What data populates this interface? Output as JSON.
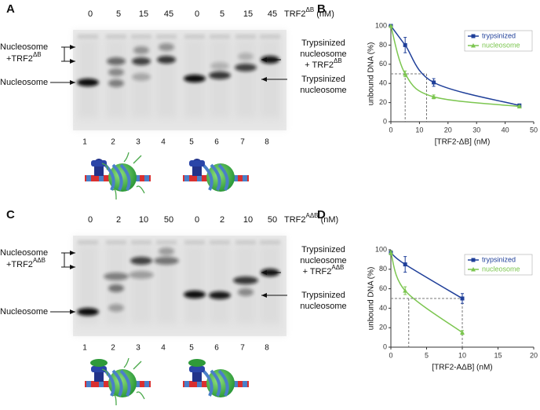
{
  "gels": [
    {
      "panel": "A",
      "concentrations": [
        0,
        5,
        15,
        45,
        0,
        5,
        15,
        45
      ],
      "conc_label": {
        "main": "TRF2",
        "sup": "ΔB",
        "unit": "(nM)"
      },
      "left_labels": {
        "complex": [
          "Nucleosome",
          "+TRF2"
        ],
        "complex_sup": "ΔB",
        "free": "Nucleosome"
      },
      "right_labels": {
        "complex": [
          "Trypsinized",
          "nucleosome",
          "+ TRF2"
        ],
        "complex_sup": "ΔB",
        "free": [
          "Trypsinized",
          "nucleosome"
        ]
      },
      "lanes": [
        1,
        2,
        3,
        4,
        5,
        6,
        7,
        8
      ]
    },
    {
      "panel": "C",
      "concentrations": [
        0,
        2,
        10,
        50,
        0,
        2,
        10,
        50
      ],
      "conc_label": {
        "main": "TRF2",
        "sup": "AΔB",
        "unit": "(nM)"
      },
      "left_labels": {
        "complex": [
          "Nucleosome",
          "+TRF2"
        ],
        "complex_sup": "AΔB",
        "free": "Nucleosome"
      },
      "right_labels": {
        "complex": [
          "Trypsinized",
          "nucleosome",
          "+ TRF2"
        ],
        "complex_sup": "AΔB",
        "free": [
          "Trypsinized",
          "nucleosome"
        ]
      },
      "lanes": [
        1,
        2,
        3,
        4,
        5,
        6,
        7,
        8
      ]
    }
  ],
  "chart_data": [
    {
      "type": "line",
      "panel": "B",
      "x_label": "[TRF2-ΔB] (nM)",
      "y_label": "unbound DNA (%)",
      "x": [
        0,
        5,
        15,
        45
      ],
      "series": [
        {
          "name": "trypsinized",
          "color": "#1f3f99",
          "marker": "square",
          "values": [
            100,
            80,
            41,
            17
          ],
          "errors": [
            0,
            8,
            4,
            1
          ]
        },
        {
          "name": "nucleosome",
          "color": "#7cc650",
          "marker": "triangle",
          "values": [
            100,
            50,
            26,
            16
          ],
          "errors": [
            0,
            3,
            2,
            1
          ]
        }
      ],
      "reference_points": [
        {
          "x": 5,
          "y": 50
        },
        {
          "x": 12.5,
          "y": 50
        }
      ],
      "xlim": [
        0,
        50
      ],
      "xticks": [
        0,
        10,
        20,
        30,
        40,
        50
      ],
      "ylim": [
        0,
        100
      ],
      "yticks": [
        0,
        20,
        40,
        60,
        80,
        100
      ],
      "legend": "upper-right"
    },
    {
      "type": "line",
      "panel": "D",
      "x_label": "[TRF2-AΔB] (nM)",
      "y_label": "unbound DNA (%)",
      "x": [
        0,
        2,
        10
      ],
      "series": [
        {
          "name": "trypsinized",
          "color": "#1f3f99",
          "marker": "square",
          "values": [
            97,
            85,
            50
          ],
          "errors": [
            2,
            8,
            5
          ]
        },
        {
          "name": "nucleosome",
          "color": "#7cc650",
          "marker": "triangle",
          "values": [
            97,
            58,
            15
          ],
          "errors": [
            2,
            4,
            2
          ]
        }
      ],
      "reference_points": [
        {
          "x": 2.5,
          "y": 50
        },
        {
          "x": 10,
          "y": 50
        }
      ],
      "xlim": [
        0,
        20
      ],
      "xticks": [
        0,
        5,
        10,
        15,
        20
      ],
      "ylim": [
        0,
        100
      ],
      "yticks": [
        0,
        20,
        40,
        60,
        80,
        100
      ],
      "legend": "upper-right"
    }
  ]
}
